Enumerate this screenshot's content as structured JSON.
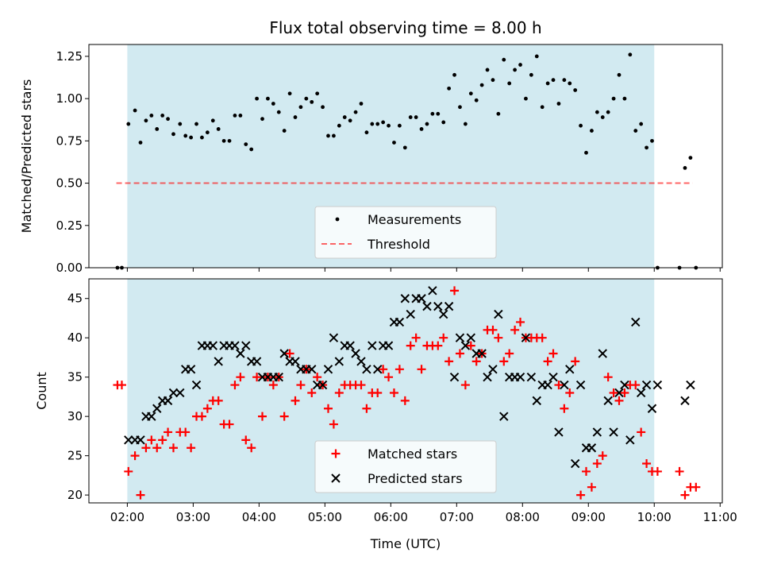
{
  "title": "Flux total observing time = 8.00 h",
  "xlabel": "Time (UTC)",
  "colors": {
    "shade": "#add8e6",
    "measurement": "#000000",
    "threshold": "#ff0000",
    "matched": "#ff0000",
    "predicted": "#000000"
  },
  "chart_data": [
    {
      "type": "scatter",
      "ylabel": "Matched/Predicted stars",
      "xlim": [
        "01:25",
        "11:02"
      ],
      "ylim": [
        0,
        1.32
      ],
      "yticks": [
        "0.00",
        "0.25",
        "0.50",
        "0.75",
        "1.00",
        "1.25"
      ],
      "xticks": [
        "02:00",
        "03:00",
        "04:00",
        "05:00",
        "06:00",
        "07:00",
        "08:00",
        "09:00",
        "10:00",
        "11:00"
      ],
      "shaded_span": [
        "02:00",
        "10:00"
      ],
      "legend": {
        "position": "lower-center",
        "entries": [
          "Measurements",
          "Threshold"
        ]
      },
      "threshold": {
        "name": "Threshold",
        "y": 0.5,
        "x": [
          "01:50",
          "10:35"
        ]
      },
      "series": [
        {
          "name": "Measurements",
          "x": [
            "01:51",
            "01:55",
            "02:01",
            "02:07",
            "02:12",
            "02:17",
            "02:22",
            "02:27",
            "02:32",
            "02:37",
            "02:42",
            "02:48",
            "02:53",
            "02:58",
            "03:03",
            "03:08",
            "03:13",
            "03:18",
            "03:23",
            "03:28",
            "03:33",
            "03:38",
            "03:43",
            "03:48",
            "03:53",
            "03:58",
            "04:03",
            "04:08",
            "04:13",
            "04:18",
            "04:23",
            "04:28",
            "04:33",
            "04:38",
            "04:43",
            "04:48",
            "04:53",
            "04:58",
            "05:03",
            "05:08",
            "05:13",
            "05:18",
            "05:23",
            "05:28",
            "05:33",
            "05:38",
            "05:43",
            "05:48",
            "05:53",
            "05:58",
            "06:03",
            "06:08",
            "06:13",
            "06:18",
            "06:23",
            "06:28",
            "06:33",
            "06:38",
            "06:43",
            "06:48",
            "06:53",
            "06:58",
            "07:03",
            "07:08",
            "07:13",
            "07:18",
            "07:23",
            "07:28",
            "07:33",
            "07:38",
            "07:43",
            "07:48",
            "07:53",
            "07:58",
            "08:03",
            "08:08",
            "08:13",
            "08:18",
            "08:23",
            "08:28",
            "08:33",
            "08:38",
            "08:43",
            "08:48",
            "08:53",
            "08:58",
            "09:03",
            "09:08",
            "09:13",
            "09:18",
            "09:23",
            "09:28",
            "09:33",
            "09:38",
            "09:43",
            "09:48",
            "09:53",
            "09:58",
            "10:03",
            "10:23",
            "10:28",
            "10:33",
            "10:38"
          ],
          "y": [
            0.0,
            0.0,
            0.85,
            0.93,
            0.74,
            0.87,
            0.9,
            0.82,
            0.9,
            0.88,
            0.79,
            0.85,
            0.78,
            0.77,
            0.85,
            0.77,
            0.8,
            0.87,
            0.82,
            0.75,
            0.75,
            0.9,
            0.9,
            0.73,
            0.7,
            1.0,
            0.88,
            1.0,
            0.97,
            0.92,
            0.81,
            1.03,
            0.89,
            0.95,
            1.0,
            0.98,
            1.03,
            0.95,
            0.78,
            0.78,
            0.84,
            0.89,
            0.87,
            0.92,
            0.97,
            0.8,
            0.85,
            0.85,
            0.86,
            0.84,
            0.74,
            0.84,
            0.71,
            0.89,
            0.89,
            0.82,
            0.85,
            0.91,
            0.91,
            0.86,
            1.06,
            1.14,
            0.95,
            0.85,
            1.03,
            0.99,
            1.08,
            1.17,
            1.11,
            0.91,
            1.23,
            1.09,
            1.17,
            1.2,
            1.0,
            1.14,
            1.25,
            0.95,
            1.09,
            1.11,
            0.97,
            1.11,
            1.09,
            1.05,
            0.84,
            0.68,
            0.81,
            0.92,
            0.89,
            0.92,
            1.0,
            1.14,
            1.0,
            1.26,
            0.81,
            0.85,
            0.71,
            0.75,
            0.0,
            0.0,
            0.59,
            0.65,
            0.0
          ]
        }
      ]
    },
    {
      "type": "scatter",
      "ylabel": "Count",
      "xlim": [
        "01:25",
        "11:02"
      ],
      "ylim": [
        19,
        47.5
      ],
      "yticks": [
        "20",
        "25",
        "30",
        "35",
        "40",
        "45"
      ],
      "xticks": [
        "02:00",
        "03:00",
        "04:00",
        "05:00",
        "06:00",
        "07:00",
        "08:00",
        "09:00",
        "10:00",
        "11:00"
      ],
      "shaded_span": [
        "02:00",
        "10:00"
      ],
      "legend": {
        "position": "lower-center",
        "entries": [
          "Matched stars",
          "Predicted stars"
        ]
      },
      "series": [
        {
          "name": "Matched stars",
          "marker": "+",
          "x": [
            "01:51",
            "01:55",
            "02:01",
            "02:07",
            "02:12",
            "02:17",
            "02:22",
            "02:27",
            "02:32",
            "02:37",
            "02:42",
            "02:48",
            "02:53",
            "02:58",
            "03:03",
            "03:08",
            "03:13",
            "03:18",
            "03:23",
            "03:28",
            "03:33",
            "03:38",
            "03:43",
            "03:48",
            "03:53",
            "03:58",
            "04:03",
            "04:08",
            "04:13",
            "04:18",
            "04:23",
            "04:28",
            "04:33",
            "04:38",
            "04:43",
            "04:48",
            "04:53",
            "04:58",
            "05:03",
            "05:08",
            "05:13",
            "05:18",
            "05:23",
            "05:28",
            "05:33",
            "05:38",
            "05:43",
            "05:48",
            "05:53",
            "05:58",
            "06:03",
            "06:08",
            "06:13",
            "06:18",
            "06:23",
            "06:28",
            "06:33",
            "06:38",
            "06:43",
            "06:48",
            "06:53",
            "06:58",
            "07:03",
            "07:08",
            "07:13",
            "07:18",
            "07:23",
            "07:28",
            "07:33",
            "07:38",
            "07:43",
            "07:48",
            "07:53",
            "07:58",
            "08:03",
            "08:08",
            "08:13",
            "08:18",
            "08:23",
            "08:28",
            "08:33",
            "08:38",
            "08:43",
            "08:48",
            "08:53",
            "08:58",
            "09:03",
            "09:08",
            "09:13",
            "09:18",
            "09:23",
            "09:28",
            "09:33",
            "09:38",
            "09:43",
            "09:48",
            "09:53",
            "09:58",
            "10:03",
            "10:23",
            "10:28",
            "10:33",
            "10:38"
          ],
          "y": [
            34,
            34,
            23,
            25,
            20,
            26,
            27,
            26,
            27,
            28,
            26,
            28,
            28,
            26,
            30,
            30,
            31,
            32,
            32,
            29,
            29,
            34,
            35,
            27,
            26,
            35,
            30,
            35,
            34,
            35,
            30,
            38,
            32,
            34,
            36,
            33,
            35,
            34,
            31,
            29,
            33,
            34,
            34,
            34,
            34,
            31,
            33,
            33,
            36,
            35,
            33,
            36,
            32,
            39,
            40,
            36,
            39,
            39,
            39,
            40,
            37,
            46,
            38,
            34,
            39,
            37,
            38,
            41,
            41,
            40,
            37,
            38,
            41,
            42,
            40,
            40,
            40,
            40,
            37,
            38,
            34,
            31,
            33,
            37,
            20,
            23,
            21,
            24,
            25,
            35,
            33,
            32,
            33,
            34,
            34,
            28,
            24,
            23,
            23,
            23,
            20,
            21,
            21
          ]
        },
        {
          "name": "Predicted stars",
          "marker": "x",
          "x": [
            "02:01",
            "02:07",
            "02:12",
            "02:17",
            "02:22",
            "02:27",
            "02:32",
            "02:37",
            "02:42",
            "02:48",
            "02:53",
            "02:58",
            "03:03",
            "03:08",
            "03:13",
            "03:18",
            "03:23",
            "03:28",
            "03:33",
            "03:38",
            "03:43",
            "03:48",
            "03:53",
            "03:58",
            "04:03",
            "04:08",
            "04:13",
            "04:18",
            "04:23",
            "04:28",
            "04:33",
            "04:38",
            "04:43",
            "04:48",
            "04:53",
            "04:58",
            "05:03",
            "05:08",
            "05:13",
            "05:18",
            "05:23",
            "05:28",
            "05:33",
            "05:38",
            "05:43",
            "05:48",
            "05:53",
            "05:58",
            "06:03",
            "06:08",
            "06:13",
            "06:18",
            "06:23",
            "06:28",
            "06:33",
            "06:38",
            "06:43",
            "06:48",
            "06:53",
            "06:58",
            "07:03",
            "07:08",
            "07:13",
            "07:18",
            "07:23",
            "07:28",
            "07:33",
            "07:38",
            "07:43",
            "07:48",
            "07:53",
            "07:58",
            "08:03",
            "08:08",
            "08:13",
            "08:18",
            "08:23",
            "08:28",
            "08:33",
            "08:38",
            "08:43",
            "08:48",
            "08:53",
            "08:58",
            "09:03",
            "09:08",
            "09:13",
            "09:18",
            "09:23",
            "09:28",
            "09:33",
            "09:38",
            "09:43",
            "09:48",
            "09:53",
            "09:58",
            "10:03",
            "10:28",
            "10:33"
          ],
          "y": [
            27,
            27,
            27,
            30,
            30,
            31,
            32,
            32,
            33,
            33,
            36,
            36,
            34,
            39,
            39,
            39,
            37,
            39,
            39,
            39,
            38,
            39,
            37,
            37,
            35,
            35,
            35,
            35,
            38,
            37,
            37,
            36,
            36,
            36,
            34,
            34,
            36,
            40,
            37,
            39,
            39,
            38,
            37,
            36,
            39,
            36,
            39,
            39,
            42,
            42,
            45,
            43,
            45,
            45,
            44,
            46,
            44,
            43,
            44,
            35,
            40,
            39,
            40,
            38,
            38,
            35,
            36,
            43,
            30,
            35,
            35,
            35,
            40,
            35,
            32,
            34,
            34,
            35,
            28,
            34,
            36,
            24,
            34,
            26,
            26,
            28,
            38,
            32,
            28,
            33,
            34,
            27,
            42,
            33,
            34,
            31,
            34,
            32,
            34
          ]
        }
      ]
    }
  ]
}
